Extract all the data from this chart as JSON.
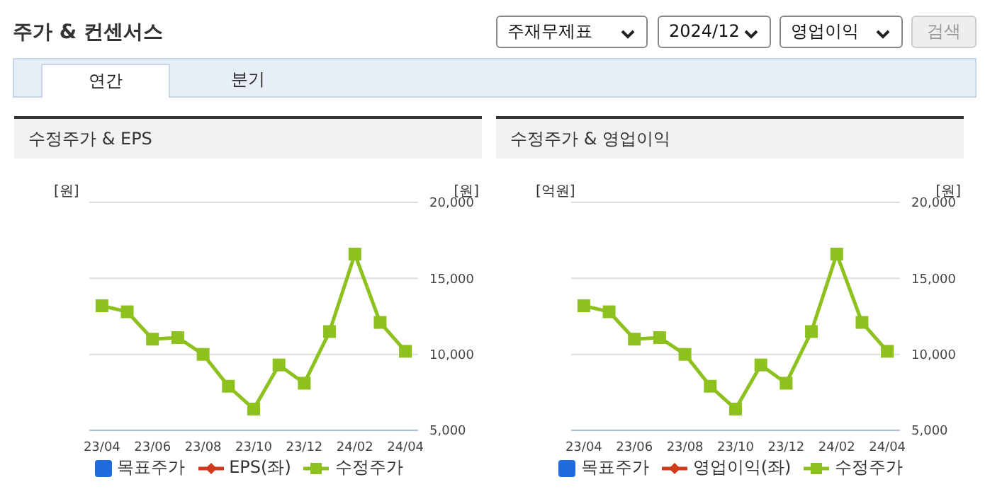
{
  "chart_data": [
    {
      "type": "line",
      "title": "수정주가 & EPS",
      "ylabel": "[원]",
      "y2label": "[원]",
      "annotations": [
        "주가 & 컨센서스",
        "주재무제표",
        "2024/12",
        "영업이익",
        "검색",
        "연간",
        "분기"
      ],
      "categories": [
        "23/04",
        null,
        "23/06",
        null,
        "23/08",
        null,
        "23/10",
        null,
        "23/12",
        null,
        "24/02",
        null,
        "24/04"
      ],
      "series": [
        {
          "name": "목표주가",
          "type": "scatter",
          "marker": "square",
          "color": "#1f6bdb",
          "values": [
            null,
            null,
            null,
            null,
            null,
            null,
            null,
            null,
            null,
            null,
            null,
            null,
            null
          ]
        },
        {
          "name": "EPS(좌)",
          "type": "line",
          "marker": "diamond",
          "color": "#d03a1a",
          "values": [
            null,
            null,
            null,
            null,
            null,
            null,
            null,
            null,
            null,
            null,
            null,
            null,
            null
          ]
        },
        {
          "name": "수정주가",
          "type": "line",
          "marker": "square",
          "axis": "y2",
          "color": "#8cc11e",
          "values": [
            13200,
            12800,
            11000,
            11100,
            10000,
            7900,
            6400,
            9300,
            8100,
            11500,
            16600,
            12100,
            10200
          ]
        }
      ],
      "y2lim": [
        5000,
        20000
      ],
      "y2ticks": [
        {
          "value": 5000,
          "label": "5,000"
        },
        {
          "value": 10000,
          "label": "10,000"
        },
        {
          "value": 15000,
          "label": "15,000"
        },
        {
          "value": 20000,
          "label": "20,000"
        }
      ],
      "grid": "y",
      "legend": "bottom"
    },
    {
      "type": "line",
      "title": "수정주가 & 영업이익",
      "ylabel": "[억원]",
      "y2label": "[원]",
      "categories": [
        "23/04",
        null,
        "23/06",
        null,
        "23/08",
        null,
        "23/10",
        null,
        "23/12",
        null,
        "24/02",
        null,
        "24/04"
      ],
      "series": [
        {
          "name": "목표주가",
          "type": "scatter",
          "marker": "square",
          "color": "#1f6bdb",
          "values": [
            null,
            null,
            null,
            null,
            null,
            null,
            null,
            null,
            null,
            null,
            null,
            null,
            null
          ]
        },
        {
          "name": "영업이익(좌)",
          "type": "line",
          "marker": "diamond",
          "color": "#d03a1a",
          "values": [
            null,
            null,
            null,
            null,
            null,
            null,
            null,
            null,
            null,
            null,
            null,
            null,
            null
          ]
        },
        {
          "name": "수정주가",
          "type": "line",
          "marker": "square",
          "axis": "y2",
          "color": "#8cc11e",
          "values": [
            13200,
            12800,
            11000,
            11100,
            10000,
            7900,
            6400,
            9300,
            8100,
            11500,
            16600,
            12100,
            10200
          ]
        }
      ],
      "y2lim": [
        5000,
        20000
      ],
      "y2ticks": [
        {
          "value": 5000,
          "label": "5,000"
        },
        {
          "value": 10000,
          "label": "10,000"
        },
        {
          "value": 15000,
          "label": "15,000"
        },
        {
          "value": 20000,
          "label": "20,000"
        }
      ],
      "grid": "y",
      "legend": "bottom"
    }
  ]
}
